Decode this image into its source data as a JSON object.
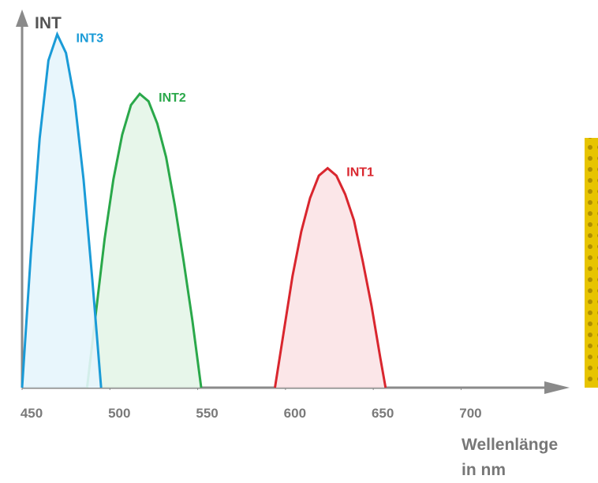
{
  "chart_data": {
    "type": "area",
    "ylabel": "INT",
    "xlabel": [
      "Wellenlänge",
      "in nm"
    ],
    "xlim": [
      450,
      760
    ],
    "xticks": [
      450,
      500,
      550,
      600,
      650,
      700
    ],
    "ylim": [
      0,
      100
    ],
    "series": [
      {
        "name": "INT1",
        "color": "#d9262e",
        "fill": "#fbe3e5",
        "x": [
          594,
          599,
          604,
          609,
          614,
          619,
          624,
          629,
          634,
          639,
          644,
          649,
          654,
          657
        ],
        "values": [
          0,
          15,
          30,
          42,
          51,
          57,
          59,
          57,
          52,
          45,
          34,
          22,
          8,
          0
        ]
      },
      {
        "name": "INT2",
        "color": "#2aa84a",
        "fill": "#e4f5e8",
        "x": [
          487,
          492,
          497,
          502,
          507,
          512,
          517,
          522,
          527,
          532,
          537,
          542,
          547,
          552
        ],
        "values": [
          0,
          20,
          40,
          56,
          68,
          76,
          79,
          77,
          71,
          62,
          49,
          34,
          18,
          0
        ]
      },
      {
        "name": "INT3",
        "color": "#1a9bd7",
        "fill": "#e6f5fc",
        "x": [
          450,
          455,
          460,
          465,
          470,
          475,
          480,
          485,
          490,
          495
        ],
        "values": [
          0,
          36,
          67,
          88,
          95,
          90,
          77,
          56,
          29,
          0
        ]
      }
    ]
  }
}
